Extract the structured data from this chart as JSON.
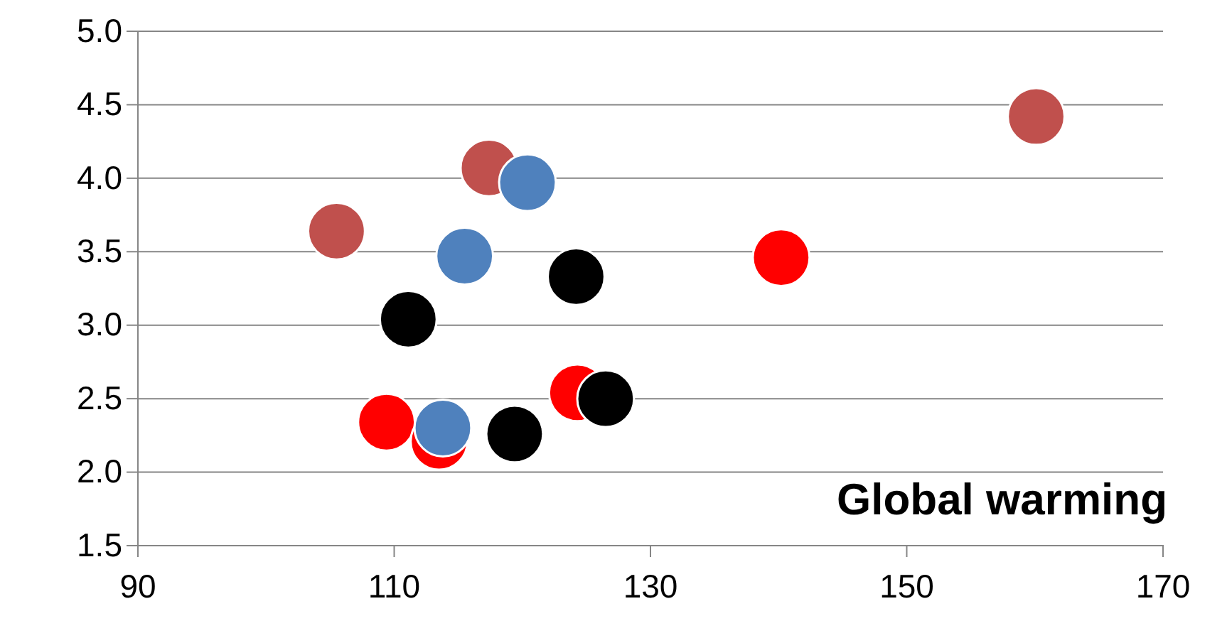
{
  "chart_data": {
    "type": "scatter",
    "annotations": [
      "Global warming"
    ],
    "xlim": [
      90,
      170
    ],
    "xticks": [
      90,
      110,
      130,
      150,
      170
    ],
    "ylim": [
      1.5,
      5.0
    ],
    "yticks": [
      {
        "value": 1.5,
        "label": "1.5"
      },
      {
        "value": 2,
        "label": "2.0"
      },
      {
        "value": 2.5,
        "label": "2.5"
      },
      {
        "value": 3,
        "label": "3.0"
      },
      {
        "value": 3.5,
        "label": "3.5"
      },
      {
        "value": 4,
        "label": "4.0"
      },
      {
        "value": 4.5,
        "label": "4.5"
      },
      {
        "value": 5,
        "label": "5.0"
      }
    ],
    "grid": "y",
    "marker": "circle",
    "series": [
      {
        "color": "#c0504d",
        "x": [
          105.5,
          117.4,
          160.1
        ],
        "values": [
          3.64,
          4.07,
          4.42
        ]
      },
      {
        "color": "#ff0000",
        "x": [
          109.4,
          113.5,
          124.3,
          140.2
        ],
        "values": [
          2.34,
          2.21,
          2.54,
          3.46
        ]
      },
      {
        "color": "#4f81bd",
        "x": [
          120.4,
          115.5,
          113.8
        ],
        "values": [
          3.97,
          3.47,
          2.3
        ]
      },
      {
        "color": "#000000",
        "x": [
          111.1,
          124.2,
          119.4,
          126.5
        ],
        "values": [
          3.04,
          3.33,
          2.26,
          2.5
        ]
      }
    ]
  }
}
